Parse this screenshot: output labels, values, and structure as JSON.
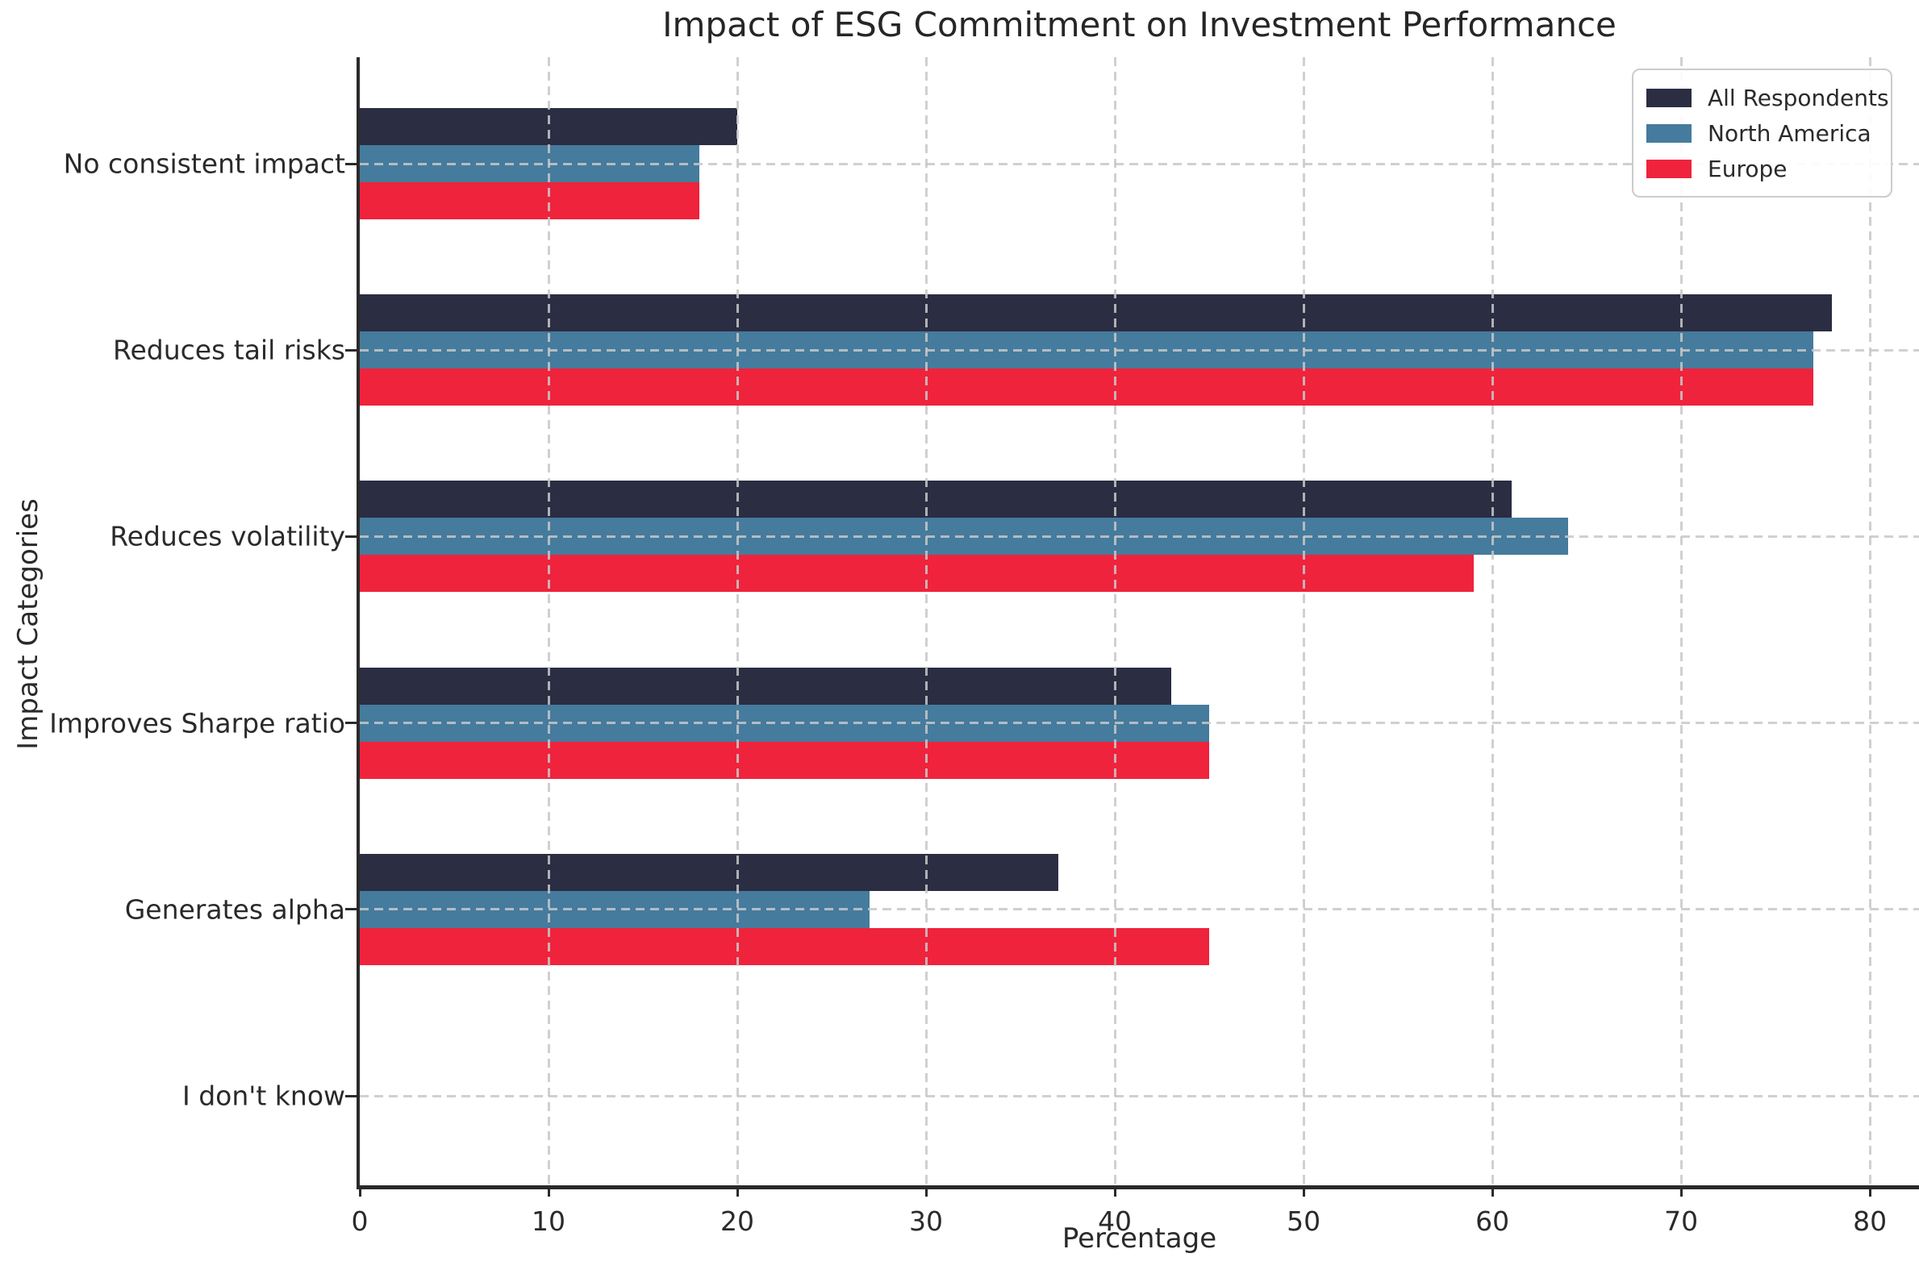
{
  "chart_data": {
    "type": "bar",
    "orientation": "horizontal",
    "title": "Impact of ESG Commitment on Investment Performance",
    "xlabel": "Percentage",
    "ylabel": "Impact Categories",
    "categories": [
      "No consistent impact",
      "Reduces tail risks",
      "Reduces volatility",
      "Improves Sharpe ratio",
      "Generates alpha",
      "I don't know"
    ],
    "series": [
      {
        "name": "All Respondents",
        "color": "#2b2d42",
        "values": [
          20,
          78,
          61,
          43,
          37,
          0
        ]
      },
      {
        "name": "North America",
        "color": "#457b9d",
        "values": [
          18,
          77,
          64,
          45,
          27,
          0
        ]
      },
      {
        "name": "Europe",
        "color": "#ef233c",
        "values": [
          18,
          77,
          59,
          45,
          45,
          0
        ]
      }
    ],
    "xticks": [
      0,
      10,
      20,
      30,
      40,
      50,
      60,
      70,
      80
    ],
    "xlim": [
      0,
      82.6
    ],
    "grid": true,
    "grid_style": "dashed",
    "grid_over_bars": true,
    "legend_position": "upper right",
    "colors": {
      "axis": "#2a2a2a",
      "grid": "#c8c8c8",
      "text": "#2a2a2a",
      "background": "#ffffff"
    }
  }
}
